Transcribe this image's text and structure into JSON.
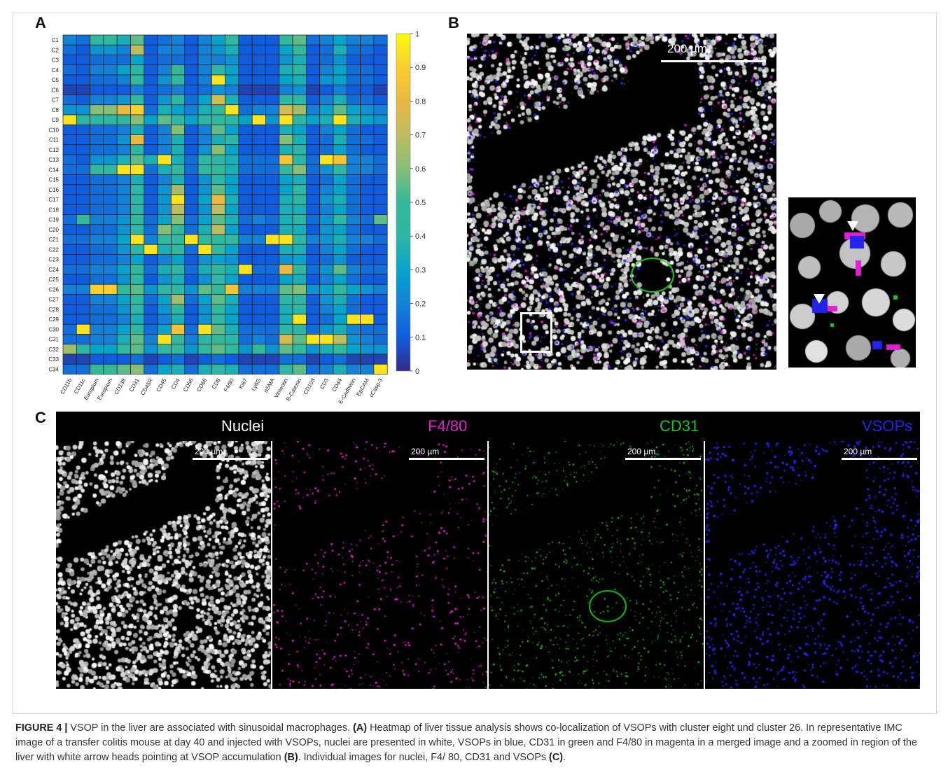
{
  "panels": {
    "a_label": "A",
    "b_label": "B",
    "c_label": "C"
  },
  "chart_data": {
    "type": "heatmap",
    "rows": [
      "C1",
      "C2",
      "C3",
      "C4",
      "C5",
      "C6",
      "C7",
      "C8",
      "C9",
      "C10",
      "C11",
      "C12",
      "C13",
      "C14",
      "C15",
      "C16",
      "C17",
      "C18",
      "C19",
      "C20",
      "C21",
      "C22",
      "C23",
      "C24",
      "C25",
      "C26",
      "C27",
      "C28",
      "C29",
      "C30",
      "C31",
      "C32",
      "C33",
      "C34"
    ],
    "columns": [
      "CD11b",
      "CD11c",
      "Europium",
      "Europium",
      "CD138",
      "CD31",
      "CD45R",
      "CD45",
      "CD4",
      "CD56",
      "CD68",
      "CD8",
      "F4/80",
      "Ki67",
      "Ly6G",
      "αSMA",
      "Vimentin",
      "B-Catenin",
      "CD103",
      "CD3",
      "CD44",
      "E-Cadherin",
      "EpCAM",
      "cCasp-3"
    ],
    "values": [
      [
        0.2,
        0.15,
        0.45,
        0.45,
        0.35,
        0.55,
        0.1,
        0.15,
        0.2,
        0.1,
        0.2,
        0.3,
        0.45,
        0.1,
        0.1,
        0.1,
        0.45,
        0.55,
        0.15,
        0.2,
        0.3,
        0.2,
        0.2,
        0.15
      ],
      [
        0.15,
        0.1,
        0.25,
        0.25,
        0.2,
        0.7,
        0.1,
        0.2,
        0.2,
        0.1,
        0.2,
        0.25,
        0.35,
        0.1,
        0.1,
        0.1,
        0.3,
        0.5,
        0.1,
        0.15,
        0.35,
        0.15,
        0.15,
        0.1
      ],
      [
        0.1,
        0.1,
        0.15,
        0.15,
        0.15,
        0.3,
        0.1,
        0.15,
        0.15,
        0.1,
        0.2,
        0.2,
        0.25,
        0.1,
        0.1,
        0.1,
        0.25,
        0.35,
        0.1,
        0.15,
        0.25,
        0.1,
        0.1,
        0.1
      ],
      [
        0.15,
        0.1,
        0.2,
        0.2,
        0.3,
        0.4,
        0.1,
        0.2,
        0.5,
        0.1,
        0.2,
        0.4,
        0.3,
        0.1,
        0.1,
        0.1,
        0.35,
        0.4,
        0.1,
        0.2,
        0.3,
        0.15,
        0.15,
        0.1
      ],
      [
        0.1,
        0.1,
        0.15,
        0.15,
        0.2,
        0.45,
        0.1,
        0.25,
        0.45,
        0.1,
        0.2,
        0.95,
        0.3,
        0.1,
        0.1,
        0.1,
        0.3,
        0.35,
        0.1,
        0.25,
        0.3,
        0.15,
        0.15,
        0.1
      ],
      [
        0.05,
        0.05,
        0.1,
        0.1,
        0.1,
        0.2,
        0.1,
        0.15,
        0.2,
        0.1,
        0.15,
        0.25,
        0.2,
        0.05,
        0.05,
        0.05,
        0.2,
        0.25,
        0.05,
        0.1,
        0.2,
        0.1,
        0.1,
        0.05
      ],
      [
        0.15,
        0.1,
        0.2,
        0.2,
        0.25,
        0.45,
        0.1,
        0.25,
        0.4,
        0.15,
        0.3,
        0.75,
        0.35,
        0.1,
        0.1,
        0.1,
        0.4,
        0.4,
        0.1,
        0.2,
        0.35,
        0.15,
        0.15,
        0.1
      ],
      [
        0.25,
        0.25,
        0.6,
        0.6,
        0.8,
        0.9,
        0.15,
        0.35,
        0.3,
        0.2,
        0.35,
        0.45,
        0.95,
        0.15,
        0.2,
        0.2,
        0.75,
        0.65,
        0.2,
        0.3,
        0.55,
        0.3,
        0.25,
        0.2
      ],
      [
        0.95,
        0.4,
        0.4,
        0.4,
        0.45,
        0.6,
        0.3,
        0.55,
        0.4,
        0.3,
        0.4,
        0.45,
        0.4,
        0.3,
        0.95,
        0.25,
        0.95,
        0.4,
        0.3,
        0.35,
        0.95,
        0.35,
        0.3,
        0.25
      ],
      [
        0.1,
        0.1,
        0.15,
        0.15,
        0.2,
        0.35,
        0.1,
        0.2,
        0.6,
        0.1,
        0.2,
        0.55,
        0.3,
        0.1,
        0.1,
        0.1,
        0.35,
        0.3,
        0.1,
        0.2,
        0.3,
        0.15,
        0.1,
        0.1
      ],
      [
        0.1,
        0.1,
        0.15,
        0.15,
        0.25,
        0.8,
        0.1,
        0.2,
        0.35,
        0.1,
        0.2,
        0.35,
        0.4,
        0.1,
        0.1,
        0.1,
        0.6,
        0.35,
        0.1,
        0.15,
        0.35,
        0.15,
        0.15,
        0.1
      ],
      [
        0.1,
        0.1,
        0.15,
        0.15,
        0.2,
        0.4,
        0.1,
        0.2,
        0.35,
        0.1,
        0.25,
        0.6,
        0.3,
        0.1,
        0.1,
        0.1,
        0.35,
        0.4,
        0.1,
        0.15,
        0.3,
        0.15,
        0.1,
        0.1
      ],
      [
        0.15,
        0.1,
        0.25,
        0.25,
        0.35,
        0.55,
        0.35,
        0.95,
        0.35,
        0.15,
        0.4,
        0.4,
        0.35,
        0.15,
        0.15,
        0.15,
        0.85,
        0.4,
        0.15,
        0.95,
        0.85,
        0.2,
        0.2,
        0.15
      ],
      [
        0.15,
        0.15,
        0.45,
        0.45,
        0.95,
        0.95,
        0.15,
        0.35,
        0.45,
        0.15,
        0.45,
        0.5,
        0.35,
        0.15,
        0.15,
        0.15,
        0.45,
        0.6,
        0.15,
        0.25,
        0.4,
        0.2,
        0.2,
        0.15
      ],
      [
        0.1,
        0.1,
        0.15,
        0.15,
        0.2,
        0.35,
        0.1,
        0.2,
        0.35,
        0.1,
        0.25,
        0.4,
        0.3,
        0.1,
        0.1,
        0.1,
        0.3,
        0.35,
        0.1,
        0.15,
        0.3,
        0.15,
        0.1,
        0.1
      ],
      [
        0.1,
        0.1,
        0.15,
        0.15,
        0.2,
        0.4,
        0.1,
        0.25,
        0.65,
        0.1,
        0.25,
        0.55,
        0.3,
        0.1,
        0.1,
        0.1,
        0.3,
        0.4,
        0.1,
        0.2,
        0.3,
        0.15,
        0.1,
        0.1
      ],
      [
        0.1,
        0.1,
        0.15,
        0.15,
        0.2,
        0.4,
        0.1,
        0.25,
        0.95,
        0.1,
        0.3,
        0.8,
        0.35,
        0.1,
        0.1,
        0.1,
        0.35,
        0.4,
        0.1,
        0.25,
        0.35,
        0.15,
        0.1,
        0.1
      ],
      [
        0.1,
        0.1,
        0.15,
        0.15,
        0.2,
        0.4,
        0.1,
        0.25,
        0.7,
        0.1,
        0.25,
        0.7,
        0.3,
        0.1,
        0.1,
        0.1,
        0.35,
        0.35,
        0.1,
        0.2,
        0.3,
        0.15,
        0.1,
        0.1
      ],
      [
        0.15,
        0.5,
        0.2,
        0.2,
        0.25,
        0.45,
        0.15,
        0.3,
        0.6,
        0.15,
        0.3,
        0.55,
        0.35,
        0.15,
        0.2,
        0.15,
        0.35,
        0.4,
        0.15,
        0.25,
        0.4,
        0.2,
        0.15,
        0.55
      ],
      [
        0.1,
        0.1,
        0.15,
        0.15,
        0.25,
        0.4,
        0.15,
        0.6,
        0.5,
        0.15,
        0.35,
        0.7,
        0.3,
        0.1,
        0.1,
        0.1,
        0.35,
        0.35,
        0.1,
        0.25,
        0.3,
        0.15,
        0.1,
        0.1
      ],
      [
        0.15,
        0.15,
        0.2,
        0.2,
        0.3,
        0.95,
        0.2,
        0.45,
        0.45,
        0.95,
        0.45,
        0.45,
        0.45,
        0.2,
        0.2,
        0.95,
        0.95,
        0.4,
        0.2,
        0.25,
        0.35,
        0.2,
        0.2,
        0.15
      ],
      [
        0.1,
        0.1,
        0.15,
        0.15,
        0.25,
        0.4,
        0.95,
        0.35,
        0.45,
        0.15,
        0.95,
        0.45,
        0.3,
        0.1,
        0.1,
        0.1,
        0.35,
        0.35,
        0.1,
        0.2,
        0.3,
        0.15,
        0.1,
        0.1
      ],
      [
        0.1,
        0.1,
        0.15,
        0.15,
        0.2,
        0.3,
        0.1,
        0.2,
        0.3,
        0.1,
        0.25,
        0.3,
        0.25,
        0.1,
        0.1,
        0.1,
        0.25,
        0.3,
        0.1,
        0.15,
        0.25,
        0.1,
        0.1,
        0.1
      ],
      [
        0.15,
        0.15,
        0.2,
        0.2,
        0.3,
        0.5,
        0.15,
        0.35,
        0.4,
        0.15,
        0.35,
        0.45,
        0.35,
        0.95,
        0.15,
        0.15,
        0.8,
        0.45,
        0.15,
        0.25,
        0.55,
        0.2,
        0.15,
        0.15
      ],
      [
        0.1,
        0.1,
        0.15,
        0.15,
        0.25,
        0.4,
        0.1,
        0.25,
        0.35,
        0.1,
        0.25,
        0.4,
        0.3,
        0.1,
        0.1,
        0.1,
        0.3,
        0.35,
        0.1,
        0.2,
        0.3,
        0.15,
        0.1,
        0.1
      ],
      [
        0.2,
        0.2,
        0.9,
        0.9,
        0.5,
        0.55,
        0.25,
        0.4,
        0.4,
        0.25,
        0.55,
        0.45,
        0.85,
        0.2,
        0.2,
        0.2,
        0.55,
        0.6,
        0.25,
        0.3,
        0.45,
        0.3,
        0.25,
        0.2
      ],
      [
        0.1,
        0.1,
        0.2,
        0.2,
        0.3,
        0.45,
        0.15,
        0.3,
        0.65,
        0.15,
        0.3,
        0.55,
        0.35,
        0.1,
        0.1,
        0.1,
        0.4,
        0.4,
        0.1,
        0.25,
        0.35,
        0.15,
        0.1,
        0.1
      ],
      [
        0.1,
        0.1,
        0.15,
        0.15,
        0.25,
        0.4,
        0.1,
        0.25,
        0.4,
        0.1,
        0.25,
        0.45,
        0.3,
        0.1,
        0.1,
        0.1,
        0.35,
        0.4,
        0.1,
        0.2,
        0.3,
        0.15,
        0.1,
        0.1
      ],
      [
        0.1,
        0.1,
        0.15,
        0.15,
        0.2,
        0.35,
        0.1,
        0.2,
        0.35,
        0.1,
        0.25,
        0.4,
        0.3,
        0.1,
        0.1,
        0.1,
        0.35,
        0.95,
        0.1,
        0.15,
        0.3,
        0.95,
        0.95,
        0.1
      ],
      [
        0.15,
        0.95,
        0.2,
        0.2,
        0.3,
        0.45,
        0.15,
        0.3,
        0.85,
        0.15,
        0.95,
        0.55,
        0.35,
        0.15,
        0.15,
        0.15,
        0.4,
        0.4,
        0.15,
        0.25,
        0.35,
        0.2,
        0.15,
        0.15
      ],
      [
        0.15,
        0.15,
        0.2,
        0.2,
        0.35,
        0.55,
        0.2,
        0.95,
        0.5,
        0.2,
        0.4,
        0.5,
        0.4,
        0.15,
        0.2,
        0.15,
        0.75,
        0.55,
        0.95,
        0.95,
        0.7,
        0.25,
        0.2,
        0.15
      ],
      [
        0.65,
        0.4,
        0.3,
        0.3,
        0.45,
        0.55,
        0.25,
        0.45,
        0.45,
        0.25,
        0.45,
        0.55,
        0.45,
        0.25,
        0.5,
        0.25,
        0.55,
        0.5,
        0.25,
        0.35,
        0.5,
        0.3,
        0.25,
        0.25
      ],
      [
        0.05,
        0.05,
        0.1,
        0.1,
        0.1,
        0.15,
        0.05,
        0.1,
        0.15,
        0.05,
        0.1,
        0.15,
        0.1,
        0.05,
        0.05,
        0.05,
        0.15,
        0.15,
        0.05,
        0.1,
        0.15,
        0.05,
        0.05,
        0.05
      ],
      [
        0.15,
        0.15,
        0.5,
        0.5,
        0.55,
        0.6,
        0.15,
        0.3,
        0.35,
        0.15,
        0.35,
        0.4,
        0.35,
        0.15,
        0.15,
        0.15,
        0.4,
        0.55,
        0.15,
        0.2,
        0.35,
        0.2,
        0.2,
        0.95
      ]
    ],
    "colorbar_ticks": [
      "0",
      "0.1",
      "0.2",
      "0.3",
      "0.4",
      "0.5",
      "0.6",
      "0.7",
      "0.8",
      "0.9",
      "1"
    ],
    "zlim": [
      0,
      1
    ]
  },
  "panel_b": {
    "scalebar_label": "200 µm"
  },
  "panel_c": {
    "channels": [
      {
        "label": "Nuclei",
        "color": "#ffffff",
        "scalebar_label": "200 µm"
      },
      {
        "label": "F4/80",
        "color": "#e01fd0",
        "scalebar_label": "200 µm"
      },
      {
        "label": "CD31",
        "color": "#1ec21e",
        "scalebar_label": "200 µm"
      },
      {
        "label": "VSOPs",
        "color": "#2323e6",
        "scalebar_label": "200 µm"
      }
    ]
  },
  "caption": {
    "figure_label": "FIGURE 4 |",
    "title": " VSOP in the liver are associated with sinusoidal macrophages. ",
    "a_ref": "(A)",
    "part1": " Heatmap of liver tissue analysis shows co-localization of VSOPs with cluster eight und cluster 26. In representative IMC image of a transfer colitis mouse at day 40 and injected with VSOPs, nuclei are presented in white, VSOPs in blue, CD31 in green and F4/80 in magenta in a merged image and a zoomed in region of the liver with white arrow heads pointing at VSOP accumulation ",
    "b_ref": "(B)",
    "part2": ". Individual images for nuclei, F4/ 80, CD31 and VSOPs ",
    "c_ref": "(C)",
    "part3": "."
  }
}
